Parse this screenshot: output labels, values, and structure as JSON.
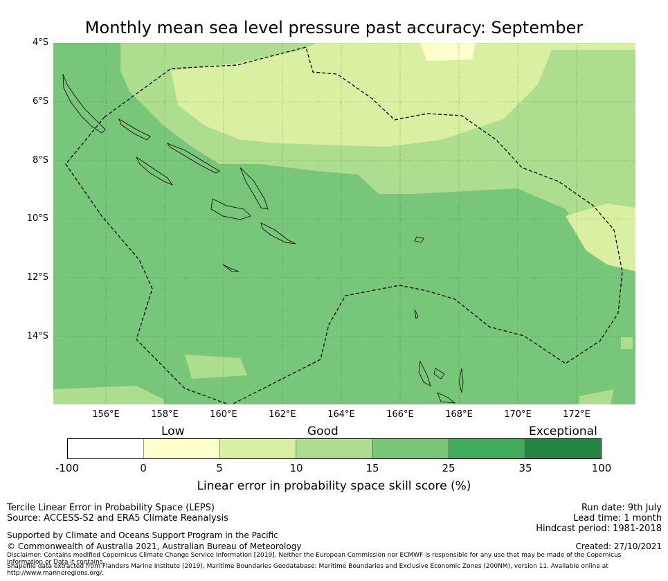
{
  "title": "Monthly mean sea level pressure past accuracy: September",
  "map": {
    "lat_ticks": [
      "4°S",
      "6°S",
      "8°S",
      "10°S",
      "12°S",
      "14°S"
    ],
    "lon_ticks": [
      "156°E",
      "158°E",
      "160°E",
      "162°E",
      "164°E",
      "166°E",
      "168°E",
      "170°E",
      "172°E"
    ],
    "extent": {
      "lon_min": 154.2,
      "lon_max": 174.0,
      "lat_min": -16.3,
      "lat_max": -4.0
    },
    "background_color": "#78c679",
    "eez_line": "dashed black"
  },
  "colorbar": {
    "categories": [
      "Low",
      "Good",
      "Exceptional"
    ],
    "ticks": [
      "-100",
      "0",
      "5",
      "10",
      "15",
      "25",
      "35",
      "100"
    ],
    "colors": [
      "#ffffff",
      "#ffffcc",
      "#d9f0a3",
      "#addd8e",
      "#78c679",
      "#41ab5d",
      "#238443"
    ],
    "label": "Linear error in probability space skill score (%)"
  },
  "footer": {
    "left1": "Tercile Linear Error in Probability Space (LEPS)",
    "left2": "Source: ACCESS-S2 and ERA5 Climate Reanalysis",
    "support": "Supported by Climate and Oceans Support Program in the Pacific",
    "copyright": "© Commonwealth of Australia 2021, Australian Bureau of Meteorology",
    "run_date": "Run date: 9th July",
    "lead_time": "Lead time: 1 month",
    "hindcast": "Hindcast period: 1981-2018",
    "created": "Created: 27/10/2021",
    "disclaimer": "Disclaimer: Contains modified Copernicus Climate Change Service Information [2019]. Neither the European Commission nor ECMWF is responsible for any use that may be made of the Copernicus Information or Data it contains.",
    "shapefile": "Shapefile data extracted from Flanders Marine Institute (2019), Maritime Boundaries Geodatabase: Maritime Boundaries and Exclusive Economic Zones (200NM), version 11. Available online at http://www.marineregions.org/."
  }
}
